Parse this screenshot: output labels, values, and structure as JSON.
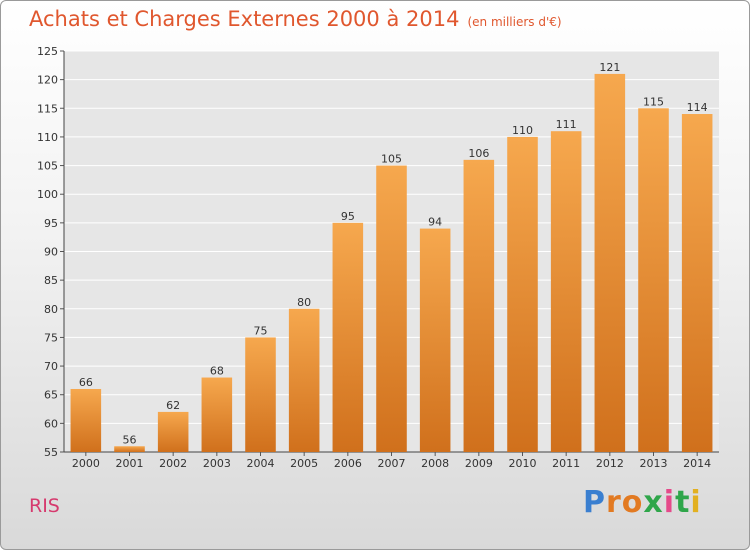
{
  "header": {
    "title": "Achats et Charges Externes 2000 à 2014",
    "unit": "(en milliers d'€)"
  },
  "footer": {
    "location": "RIS",
    "logo_text": "Proxiti"
  },
  "colors": {
    "bar_top": "#f6a84e",
    "bar_bottom": "#d0701c",
    "title": "#e0572e",
    "location": "#d63a6e"
  },
  "chart_data": {
    "type": "bar",
    "title": "Achats et Charges Externes 2000 à 2014",
    "subtitle": "(en milliers d'€)",
    "categories": [
      "2000",
      "2001",
      "2002",
      "2003",
      "2004",
      "2005",
      "2006",
      "2007",
      "2008",
      "2009",
      "2010",
      "2011",
      "2012",
      "2013",
      "2014"
    ],
    "values": [
      66,
      56,
      62,
      68,
      75,
      80,
      95,
      105,
      94,
      106,
      110,
      111,
      121,
      115,
      114
    ],
    "ylim": [
      55,
      125
    ],
    "yticks": [
      55,
      60,
      65,
      70,
      75,
      80,
      85,
      90,
      95,
      100,
      105,
      110,
      115,
      120,
      125
    ],
    "grid": true,
    "data_labels": true
  }
}
